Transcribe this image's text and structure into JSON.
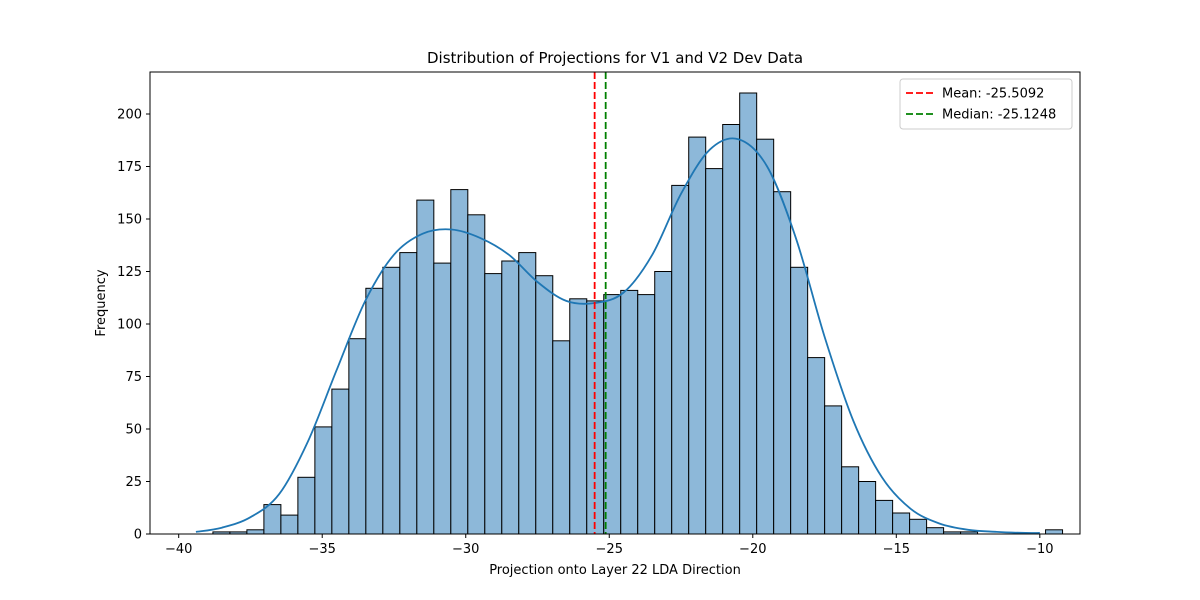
{
  "chart_data": {
    "type": "bar",
    "title": "Distribution of Projections for V1 and V2 Dev Data",
    "xlabel": "Projection onto Layer 22 LDA Direction",
    "ylabel": "Frequency",
    "xlim": [
      -41.0,
      -8.6
    ],
    "ylim": [
      0,
      220
    ],
    "xticks": [
      -40,
      -35,
      -30,
      -25,
      -20,
      -15,
      -10
    ],
    "xtick_labels": [
      "−40",
      "−35",
      "−30",
      "−25",
      "−20",
      "−15",
      "−10"
    ],
    "yticks": [
      0,
      25,
      50,
      75,
      100,
      125,
      150,
      175,
      200
    ],
    "ytick_labels": [
      "0",
      "25",
      "50",
      "75",
      "100",
      "125",
      "150",
      "175",
      "200"
    ],
    "bins": {
      "start": -39.4,
      "width": 0.592,
      "counts": [
        0,
        1,
        1,
        2,
        14,
        9,
        27,
        51,
        69,
        93,
        117,
        127,
        134,
        159,
        129,
        164,
        152,
        124,
        130,
        134,
        123,
        92,
        112,
        111,
        114,
        116,
        114,
        125,
        166,
        189,
        174,
        195,
        210,
        188,
        163,
        127,
        84,
        61,
        32,
        25,
        16,
        10,
        7,
        3,
        1,
        1,
        0,
        0,
        0,
        0,
        2
      ]
    },
    "kde": {
      "x": [
        -39.4,
        -38.5,
        -37.5,
        -36.5,
        -35.5,
        -34.5,
        -33.5,
        -32.5,
        -31.5,
        -30.5,
        -29.5,
        -28.5,
        -27.5,
        -26.5,
        -25.5,
        -24.5,
        -23.5,
        -22.5,
        -21.5,
        -20.5,
        -19.5,
        -18.5,
        -17.5,
        -16.5,
        -15.5,
        -14.5,
        -13.5,
        -12.5,
        -11.5,
        -10.5,
        -10.0
      ],
      "y": [
        1,
        3,
        8,
        19,
        44,
        78,
        111,
        133,
        143,
        145,
        141,
        133,
        120,
        111,
        110,
        115,
        133,
        162,
        183,
        188,
        175,
        141,
        94,
        54,
        27,
        12,
        5,
        2,
        1,
        0.5,
        0.5
      ]
    },
    "vlines": [
      {
        "label": "Mean: -25.5092",
        "x": -25.5092,
        "color": "#ff0000"
      },
      {
        "label": "Median: -25.1248",
        "x": -25.1248,
        "color": "#008000"
      }
    ],
    "colors": {
      "bar_fill": "#8db8d9",
      "bar_edge": "#000000",
      "kde_line": "#1f77b4"
    },
    "legend_position": "top-right",
    "grid": false
  }
}
